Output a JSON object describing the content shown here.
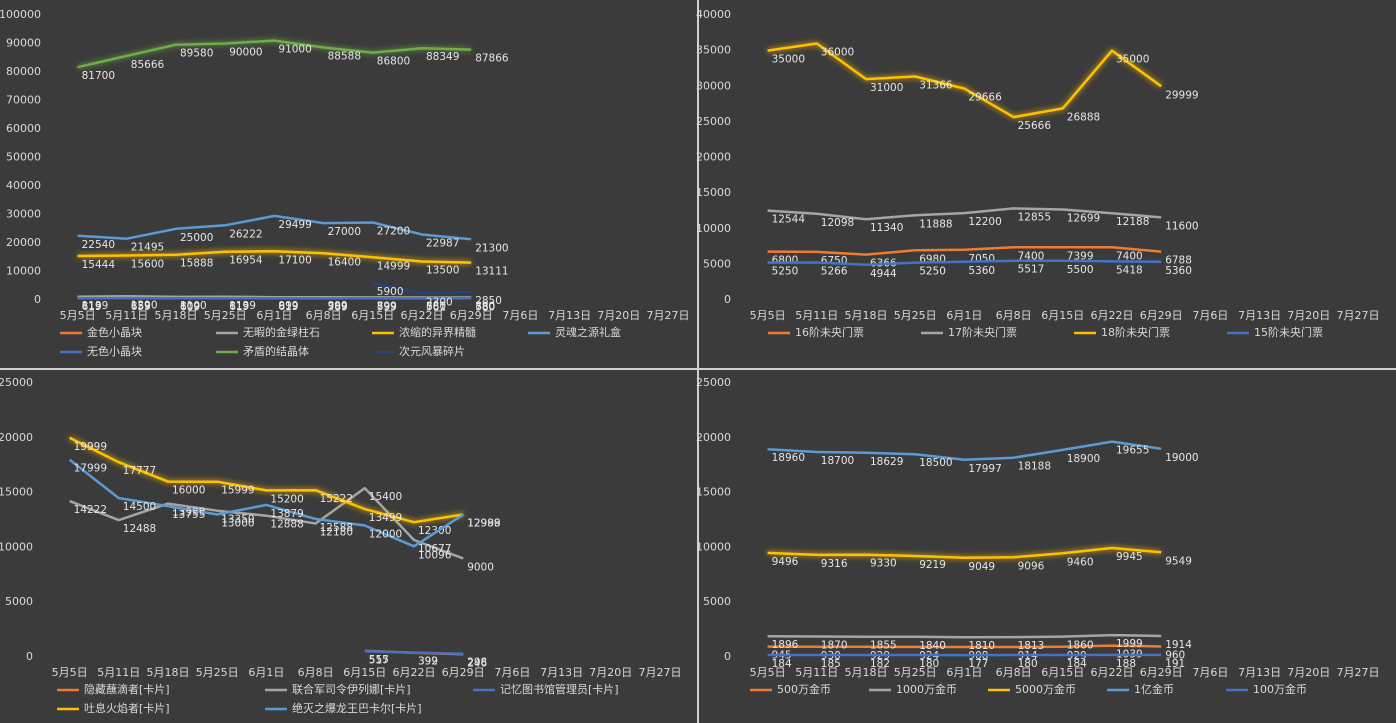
{
  "chart_data": [
    {
      "type": "line",
      "categories": [
        "5月5日",
        "5月11日",
        "5月18日",
        "5月25日",
        "6月1日",
        "6月8日",
        "6月15日",
        "6月22日",
        "6月29日",
        "7月6日",
        "7月13日",
        "7月20日",
        "7月27日"
      ],
      "ylim": [
        0,
        100000
      ],
      "yticks": [
        0,
        10000,
        20000,
        30000,
        40000,
        50000,
        60000,
        70000,
        80000,
        90000,
        100000
      ],
      "grid": false,
      "legend": "bottom",
      "series": [
        {
          "name": "金色小晶块",
          "color": "#ed7d31",
          "values": [
            819,
            859,
            809,
            819,
            819,
            769,
            799,
            761,
            780,
            null,
            null,
            null,
            null
          ]
        },
        {
          "name": "无暇的金绿柱石",
          "color": "#a5a5a5",
          "values": [
            1139,
            1290,
            1100,
            1139,
            999,
            999,
            899,
            880,
            880,
            null,
            null,
            null,
            null
          ]
        },
        {
          "name": "浓缩的异界精髓",
          "color": "#ffc000",
          "values": [
            15444,
            15600,
            15888,
            16954,
            17100,
            16400,
            14999,
            13500,
            13111,
            null,
            null,
            null,
            null
          ]
        },
        {
          "name": "灵魂之源礼盒",
          "color": "#5b9bd5",
          "values": [
            22540,
            21495,
            25000,
            26222,
            29499,
            27000,
            27200,
            22987,
            21300,
            null,
            null,
            null,
            null
          ]
        },
        {
          "name": "无色小晶块",
          "color": "#4472c4",
          "values": [
            619,
            659,
            609,
            619,
            619,
            569,
            599,
            561,
            580,
            null,
            null,
            null,
            null
          ]
        },
        {
          "name": "矛盾的结晶体",
          "color": "#70ad47",
          "values": [
            81700,
            85666,
            89580,
            90000,
            91000,
            88588,
            86800,
            88349,
            87866,
            null,
            null,
            null,
            null
          ]
        },
        {
          "name": "次元风暴碎片",
          "color": "#264478",
          "values": [
            null,
            null,
            null,
            null,
            null,
            null,
            5900,
            2300,
            2850,
            null,
            null,
            null,
            null
          ]
        }
      ]
    },
    {
      "type": "line",
      "categories": [
        "5月5日",
        "5月11日",
        "5月18日",
        "5月25日",
        "6月1日",
        "6月8日",
        "6月15日",
        "6月22日",
        "6月29日",
        "7月6日",
        "7月13日",
        "7月20日",
        "7月27日"
      ],
      "ylim": [
        0,
        40000
      ],
      "yticks": [
        0,
        5000,
        10000,
        15000,
        20000,
        25000,
        30000,
        35000,
        40000
      ],
      "grid": false,
      "legend": "bottom",
      "series": [
        {
          "name": "16阶未央门票",
          "color": "#ed7d31",
          "values": [
            6800,
            6750,
            6366,
            6980,
            7050,
            7400,
            7399,
            7400,
            6788,
            null,
            null,
            null,
            null
          ]
        },
        {
          "name": "17阶未央门票",
          "color": "#a5a5a5",
          "values": [
            12544,
            12098,
            11340,
            11888,
            12200,
            12855,
            12699,
            12188,
            11600,
            null,
            null,
            null,
            null
          ]
        },
        {
          "name": "18阶未央门票",
          "color": "#ffc000",
          "values": [
            35000,
            36000,
            31000,
            31366,
            29666,
            25666,
            26888,
            35000,
            29999,
            null,
            null,
            null,
            null
          ]
        },
        {
          "name": "15阶未央门票",
          "color": "#4472c4",
          "values": [
            5250,
            5266,
            4944,
            5250,
            5360,
            5517,
            5500,
            5418,
            5360,
            null,
            null,
            null,
            null
          ]
        }
      ]
    },
    {
      "type": "line",
      "categories": [
        "5月5日",
        "5月11日",
        "5月18日",
        "5月25日",
        "6月1日",
        "6月8日",
        "6月15日",
        "6月22日",
        "6月29日",
        "7月6日",
        "7月13日",
        "7月20日",
        "7月27日"
      ],
      "ylim": [
        0,
        25000
      ],
      "yticks": [
        0,
        5000,
        10000,
        15000,
        20000,
        25000
      ],
      "grid": false,
      "legend": "bottom",
      "series": [
        {
          "name": "隐藏蘸滴者[卡片]",
          "color": "#ed7d31",
          "values": [
            null,
            null,
            null,
            null,
            null,
            null,
            555,
            392,
            246,
            null,
            null,
            null,
            null
          ]
        },
        {
          "name": "联合军司令伊列娜[卡片]",
          "color": "#a5a5a5",
          "values": [
            14222,
            12488,
            13999,
            13350,
            12888,
            12180,
            15400,
            10677,
            9000,
            null,
            null,
            null,
            null
          ]
        },
        {
          "name": "记忆图书馆管理员[卡片]",
          "color": "#4472c4",
          "values": [
            null,
            null,
            null,
            null,
            null,
            null,
            517,
            399,
            298,
            null,
            null,
            null,
            null
          ]
        },
        {
          "name": "吐息火焰者[卡片]",
          "color": "#ffc000",
          "values": [
            19999,
            17777,
            16000,
            15999,
            15200,
            15222,
            13499,
            12300,
            12999,
            null,
            null,
            null,
            null
          ]
        },
        {
          "name": "绝灭之爆龙王巴卡尔[卡片]",
          "color": "#5b9bd5",
          "values": [
            17999,
            14500,
            13755,
            13000,
            13879,
            12588,
            12000,
            10096,
            12988,
            null,
            null,
            null,
            null
          ]
        }
      ]
    },
    {
      "type": "line",
      "categories": [
        "5月5日",
        "5月11日",
        "5月18日",
        "5月25日",
        "6月1日",
        "6月8日",
        "6月15日",
        "6月22日",
        "6月29日",
        "7月6日",
        "7月13日",
        "7月20日",
        "7月27日"
      ],
      "ylim": [
        0,
        25000
      ],
      "yticks": [
        0,
        5000,
        10000,
        15000,
        20000,
        25000
      ],
      "grid": false,
      "legend": "bottom",
      "series": [
        {
          "name": "500万金币",
          "color": "#ed7d31",
          "values": [
            945,
            930,
            929,
            924,
            908,
            914,
            929,
            1039,
            960,
            null,
            null,
            null,
            null
          ]
        },
        {
          "name": "1000万金币",
          "color": "#a5a5a5",
          "values": [
            1896,
            1870,
            1855,
            1840,
            1810,
            1813,
            1860,
            1999,
            1914,
            null,
            null,
            null,
            null
          ]
        },
        {
          "name": "5000万金币",
          "color": "#ffc000",
          "values": [
            9496,
            9316,
            9330,
            9219,
            9049,
            9096,
            9460,
            9945,
            9549,
            null,
            null,
            null,
            null
          ]
        },
        {
          "name": "1亿金币",
          "color": "#5b9bd5",
          "values": [
            18960,
            18700,
            18629,
            18500,
            17997,
            18188,
            18900,
            19655,
            19000,
            null,
            null,
            null,
            null
          ]
        },
        {
          "name": "100万金币",
          "color": "#4472c4",
          "values": [
            184,
            185,
            182,
            180,
            177,
            180,
            184,
            188,
            191,
            null,
            null,
            null,
            null
          ]
        }
      ]
    }
  ]
}
